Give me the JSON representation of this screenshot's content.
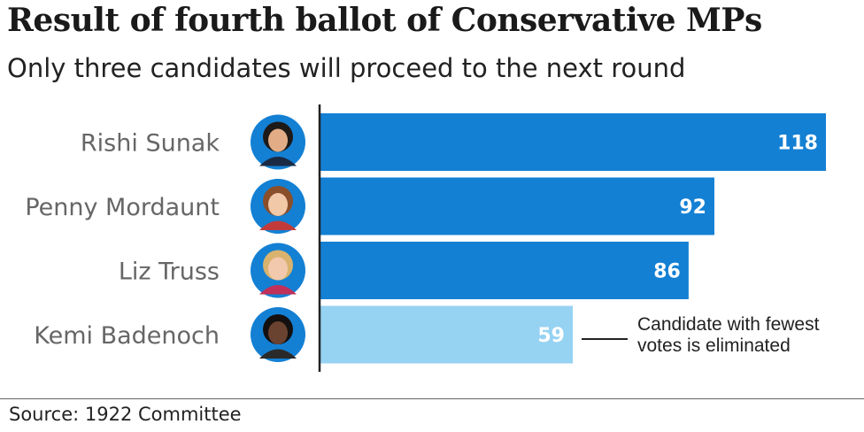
{
  "header": {
    "title": "Result of fourth ballot of Conservative MPs",
    "subtitle": "Only three candidates will proceed to the next round"
  },
  "footer": {
    "source": "Source: 1922 Committee"
  },
  "colors": {
    "bar_proceed": "#1380d4",
    "bar_eliminated": "#96d2f2",
    "axis": "#222222",
    "label_text": "#666666",
    "value_text": "#ffffff"
  },
  "chart_data": {
    "type": "bar",
    "orientation": "horizontal",
    "categories": [
      "Rishi Sunak",
      "Penny Mordaunt",
      "Liz Truss",
      "Kemi Badenoch"
    ],
    "values": [
      118,
      92,
      86,
      59
    ],
    "eliminated": [
      false,
      false,
      false,
      true
    ],
    "xlim": [
      0,
      120
    ],
    "grid": false,
    "data_labels": true,
    "annotation": {
      "target": "Kemi Badenoch",
      "lines": [
        "Candidate with fewest",
        "votes is eliminated"
      ]
    }
  }
}
